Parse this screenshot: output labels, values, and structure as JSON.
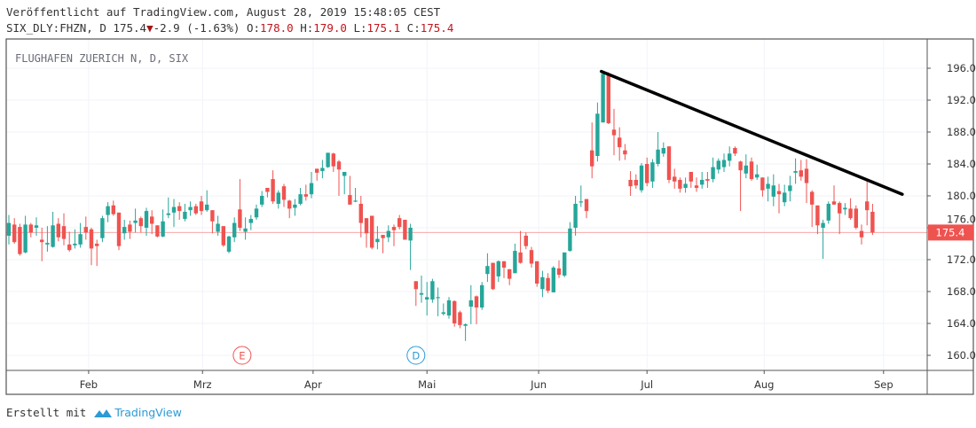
{
  "header": {
    "published": "Veröffentlicht auf TradingView.com, August 28, 2019 15:48:05 CEST",
    "symbol": "SIX_DLY:FHZN, D",
    "last": "175.4",
    "change": "-2.9 (-1.63%)",
    "o_label": "O:",
    "o_value": "178.0",
    "h_label": "H:",
    "h_value": "179.0",
    "l_label": "L:",
    "l_value": "175.1",
    "c_label": "C:",
    "c_value": "175.4"
  },
  "footer": {
    "created_with": "Erstellt mit",
    "brand": "TradingView"
  },
  "colors": {
    "up": "#26a69a",
    "down": "#ef5350",
    "trendline": "#000000",
    "price_line": "#f7a8a8",
    "grid": "#f0f3fa"
  },
  "chart_data": {
    "type": "candlestick",
    "title": "FLUGHAFEN ZUERICH N, D, SIX",
    "ylim": [
      158,
      199.5
    ],
    "y_ticks": [
      "196.0",
      "192.0",
      "188.0",
      "184.0",
      "180.0",
      "176.0",
      "172.0",
      "168.0",
      "164.0",
      "160.0"
    ],
    "x_ticks": [
      {
        "label": "Feb",
        "index": 14.5
      },
      {
        "label": "Mrz",
        "index": 35.2
      },
      {
        "label": "Apr",
        "index": 55.3
      },
      {
        "label": "Mai",
        "index": 76
      },
      {
        "label": "Jun",
        "index": 96.3
      },
      {
        "label": "Jul",
        "index": 116
      },
      {
        "label": "Aug",
        "index": 137.3
      },
      {
        "label": "Sep",
        "index": 159
      }
    ],
    "last_price": {
      "value": 175.4,
      "label": "175.4"
    },
    "events": [
      {
        "label": "E",
        "index": 42.4,
        "type": "earnings"
      },
      {
        "label": "D",
        "index": 74,
        "type": "dividend"
      }
    ],
    "trendline": {
      "start": {
        "index": 107.7,
        "price": 195.6
      },
      "end": {
        "index": 162.4,
        "price": 180.2
      }
    },
    "ohlc": [
      [
        175.0,
        177.6,
        173.9,
        176.6
      ],
      [
        176.4,
        177.2,
        174.0,
        174.2
      ],
      [
        176.1,
        176.5,
        172.5,
        172.7
      ],
      [
        172.9,
        177.5,
        172.8,
        176.4
      ],
      [
        176.4,
        176.6,
        174.8,
        175.4
      ],
      [
        176.0,
        177.3,
        175.0,
        176.3
      ],
      [
        174.5,
        176.0,
        171.8,
        174.2
      ],
      [
        173.9,
        176.2,
        173.0,
        174.1
      ],
      [
        173.6,
        178.0,
        173.5,
        176.3
      ],
      [
        176.5,
        177.2,
        174.3,
        174.8
      ],
      [
        176.2,
        177.8,
        173.8,
        174.6
      ],
      [
        173.9,
        175.5,
        173.0,
        173.2
      ],
      [
        173.8,
        175.8,
        173.4,
        174.0
      ],
      [
        173.9,
        176.6,
        173.5,
        175.2
      ],
      [
        176.1,
        177.4,
        174.5,
        175.4
      ],
      [
        175.8,
        176.0,
        171.3,
        173.4
      ],
      [
        174.0,
        174.5,
        171.2,
        173.7
      ],
      [
        174.7,
        177.5,
        174.2,
        177.2
      ],
      [
        177.6,
        179.2,
        176.7,
        178.7
      ],
      [
        178.8,
        179.4,
        177.5,
        177.7
      ],
      [
        177.9,
        177.9,
        173.2,
        173.7
      ],
      [
        175.3,
        177.0,
        174.5,
        176.1
      ],
      [
        176.4,
        176.9,
        174.6,
        175.5
      ],
      [
        176.6,
        178.4,
        175.4,
        176.9
      ],
      [
        177.2,
        177.4,
        175.4,
        176.2
      ],
      [
        176.0,
        178.5,
        175.0,
        178.1
      ],
      [
        177.4,
        178.2,
        175.2,
        176.5
      ],
      [
        176.3,
        176.3,
        174.8,
        174.9
      ],
      [
        174.9,
        178.3,
        174.8,
        176.8
      ],
      [
        177.6,
        179.8,
        177.2,
        177.8
      ],
      [
        177.9,
        179.6,
        176.1,
        178.6
      ],
      [
        178.7,
        179.2,
        177.0,
        178.1
      ],
      [
        177.1,
        179.0,
        176.8,
        178.0
      ],
      [
        178.2,
        179.3,
        177.5,
        178.6
      ],
      [
        178.7,
        179.0,
        177.6,
        177.8
      ],
      [
        179.3,
        180.0,
        177.6,
        178.1
      ],
      [
        178.2,
        180.7,
        178.0,
        178.9
      ],
      [
        178.2,
        178.2,
        175.3,
        176.8
      ],
      [
        175.5,
        177.5,
        175.0,
        176.5
      ],
      [
        176.2,
        176.2,
        173.6,
        173.8
      ],
      [
        173.0,
        175.0,
        172.8,
        174.9
      ],
      [
        174.8,
        177.3,
        174.2,
        176.6
      ],
      [
        178.3,
        182.1,
        175.6,
        176.0
      ],
      [
        175.5,
        177.3,
        174.5,
        175.9
      ],
      [
        176.6,
        177.6,
        175.7,
        177.1
      ],
      [
        177.3,
        178.9,
        177.0,
        178.4
      ],
      [
        178.9,
        180.6,
        178.6,
        180.0
      ],
      [
        181.0,
        181.0,
        179.8,
        180.5
      ],
      [
        182.1,
        183.2,
        179.0,
        179.3
      ],
      [
        179.0,
        180.7,
        178.4,
        180.4
      ],
      [
        181.2,
        181.5,
        178.6,
        179.5
      ],
      [
        179.4,
        179.5,
        177.2,
        178.4
      ],
      [
        178.5,
        179.6,
        177.5,
        178.9
      ],
      [
        179.0,
        181.0,
        178.8,
        180.2
      ],
      [
        180.2,
        181.4,
        179.4,
        179.9
      ],
      [
        180.2,
        183.0,
        179.7,
        181.6
      ],
      [
        183.4,
        183.4,
        181.9,
        182.9
      ],
      [
        183.1,
        184.5,
        182.2,
        183.5
      ],
      [
        183.6,
        185.4,
        183.5,
        185.4
      ],
      [
        185.3,
        185.4,
        183.0,
        183.7
      ],
      [
        184.3,
        184.5,
        180.0,
        183.3
      ],
      [
        182.5,
        183.0,
        180.2,
        183.0
      ],
      [
        180.1,
        182.5,
        178.9,
        178.9
      ],
      [
        179.3,
        181.0,
        179.2,
        179.4
      ],
      [
        179.0,
        180.0,
        174.8,
        176.6
      ],
      [
        177.2,
        177.2,
        173.5,
        175.3
      ],
      [
        177.5,
        177.5,
        173.3,
        173.5
      ],
      [
        174.2,
        176.2,
        173.3,
        174.6
      ],
      [
        175.1,
        175.1,
        172.8,
        174.7
      ],
      [
        174.8,
        176.3,
        174.2,
        175.6
      ],
      [
        176.1,
        176.4,
        173.7,
        175.7
      ],
      [
        177.2,
        177.6,
        175.8,
        176.1
      ],
      [
        177.0,
        177.0,
        174.5,
        174.5
      ],
      [
        174.4,
        176.5,
        170.7,
        176.0
      ],
      [
        169.3,
        169.3,
        166.2,
        168.3
      ],
      [
        167.6,
        170.0,
        166.6,
        167.8
      ],
      [
        167.0,
        169.2,
        165.0,
        167.3
      ],
      [
        167.0,
        169.6,
        166.6,
        169.3
      ],
      [
        167.2,
        168.5,
        164.9,
        167.3
      ],
      [
        165.2,
        166.5,
        165.0,
        165.4
      ],
      [
        165.0,
        167.3,
        164.6,
        166.9
      ],
      [
        166.8,
        166.9,
        163.6,
        164.0
      ],
      [
        165.4,
        165.6,
        163.4,
        163.8
      ],
      [
        163.7,
        164.0,
        161.8,
        163.9
      ],
      [
        166.1,
        168.8,
        163.9,
        166.9
      ],
      [
        167.4,
        167.5,
        163.9,
        166.0
      ],
      [
        166.0,
        169.2,
        165.7,
        168.8
      ],
      [
        170.2,
        172.8,
        169.2,
        171.2
      ],
      [
        171.6,
        171.6,
        168.2,
        168.3
      ],
      [
        169.9,
        171.9,
        169.2,
        171.8
      ],
      [
        171.8,
        171.8,
        169.7,
        171.0
      ],
      [
        170.8,
        170.8,
        168.8,
        169.6
      ],
      [
        170.3,
        174.0,
        170.3,
        173.1
      ],
      [
        172.9,
        175.6,
        171.5,
        171.6
      ],
      [
        175.0,
        175.4,
        173.3,
        173.7
      ],
      [
        173.2,
        173.6,
        171.0,
        171.5
      ],
      [
        171.8,
        171.8,
        168.6,
        169.0
      ],
      [
        168.3,
        170.6,
        167.3,
        169.8
      ],
      [
        169.7,
        170.3,
        167.8,
        168.1
      ],
      [
        167.9,
        171.2,
        167.9,
        171.0
      ],
      [
        170.9,
        171.9,
        169.7,
        170.1
      ],
      [
        170.0,
        172.9,
        169.8,
        172.9
      ],
      [
        173.1,
        176.7,
        173.0,
        175.9
      ],
      [
        176.0,
        180.0,
        175.0,
        179.0
      ],
      [
        179.2,
        181.3,
        178.6,
        179.3
      ],
      [
        179.6,
        179.6,
        177.2,
        178.1
      ],
      [
        185.7,
        189.2,
        182.2,
        183.7
      ],
      [
        185.0,
        191.7,
        184.3,
        190.3
      ],
      [
        189.2,
        195.5,
        189.2,
        195.3
      ],
      [
        195.3,
        195.5,
        189.0,
        189.1
      ],
      [
        188.3,
        190.9,
        185.1,
        187.6
      ],
      [
        187.3,
        188.6,
        184.4,
        186.1
      ],
      [
        185.7,
        186.5,
        184.5,
        185.2
      ],
      [
        182.0,
        183.1,
        180.0,
        181.2
      ],
      [
        182.0,
        182.7,
        180.9,
        181.3
      ],
      [
        180.7,
        184.1,
        180.4,
        183.8
      ],
      [
        184.0,
        184.8,
        181.2,
        181.6
      ],
      [
        181.8,
        184.6,
        181.0,
        184.2
      ],
      [
        184.0,
        188.0,
        183.7,
        185.8
      ],
      [
        185.3,
        186.7,
        184.9,
        186.0
      ],
      [
        186.2,
        186.2,
        181.6,
        182.0
      ],
      [
        182.4,
        183.4,
        180.9,
        181.8
      ],
      [
        182.0,
        182.3,
        180.4,
        180.9
      ],
      [
        181.0,
        182.3,
        180.4,
        181.5
      ],
      [
        183.0,
        183.0,
        181.0,
        181.8
      ],
      [
        181.3,
        182.3,
        180.5,
        181.0
      ],
      [
        181.4,
        183.0,
        180.9,
        182.0
      ],
      [
        182.1,
        183.0,
        181.0,
        181.9
      ],
      [
        182.1,
        184.8,
        181.7,
        183.6
      ],
      [
        183.3,
        184.7,
        182.8,
        184.4
      ],
      [
        183.6,
        185.3,
        183.0,
        184.5
      ],
      [
        184.4,
        186.2,
        183.7,
        185.3
      ],
      [
        186.0,
        186.2,
        185.0,
        185.3
      ],
      [
        184.3,
        184.4,
        178.1,
        183.2
      ],
      [
        182.8,
        185.2,
        182.2,
        183.8
      ],
      [
        184.3,
        184.8,
        181.9,
        182.1
      ],
      [
        182.3,
        183.9,
        182.0,
        182.7
      ],
      [
        182.3,
        182.3,
        179.9,
        180.7
      ],
      [
        180.9,
        182.4,
        179.3,
        181.5
      ],
      [
        179.9,
        182.7,
        178.7,
        181.3
      ],
      [
        180.6,
        181.5,
        177.8,
        180.2
      ],
      [
        179.2,
        181.4,
        178.7,
        180.4
      ],
      [
        180.6,
        182.5,
        179.3,
        181.3
      ],
      [
        182.9,
        184.7,
        181.5,
        183.1
      ],
      [
        183.2,
        184.5,
        181.9,
        182.4
      ],
      [
        183.4,
        184.6,
        179.1,
        181.6
      ],
      [
        180.5,
        180.7,
        176.1,
        178.9
      ],
      [
        178.8,
        178.8,
        175.2,
        176.3
      ],
      [
        176.0,
        177.0,
        172.1,
        176.6
      ],
      [
        176.9,
        179.3,
        176.5,
        179.0
      ],
      [
        179.3,
        181.3,
        178.9,
        178.9
      ],
      [
        179.1,
        179.3,
        175.2,
        177.8
      ],
      [
        178.3,
        179.1,
        177.6,
        178.5
      ],
      [
        178.4,
        179.7,
        177.0,
        177.2
      ],
      [
        178.4,
        178.8,
        175.8,
        176.0
      ],
      [
        175.6,
        176.4,
        173.9,
        174.8
      ],
      [
        179.3,
        182.1,
        176.3,
        178.2
      ],
      [
        178.0,
        179.0,
        175.1,
        175.4
      ]
    ]
  }
}
